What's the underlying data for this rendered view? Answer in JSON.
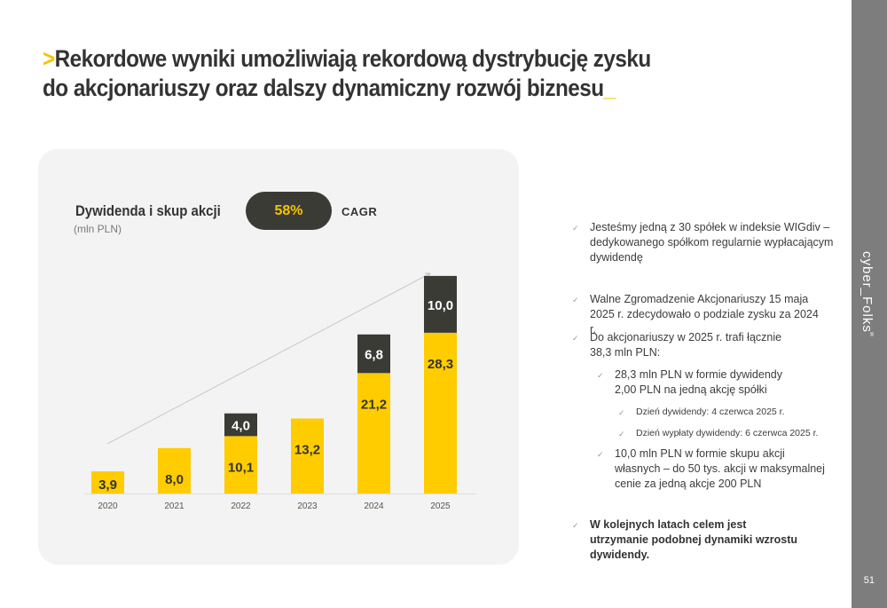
{
  "title": {
    "prefix": ">",
    "line1": "Rekordowe wyniki umożliwiają rekordową dystrybucję zysku",
    "line2": "do akcjonariuszy oraz dalszy dynamiczny rozwój biznesu",
    "suffix": "_"
  },
  "sidebar": {
    "brand": "cyber_Folks",
    "trademark": "®",
    "page_number": "51"
  },
  "chart_data": {
    "type": "bar",
    "stacked": true,
    "title": "Dywidenda i skup akcji",
    "unit": "(mln PLN)",
    "cagr": {
      "value": "58%",
      "label": "CAGR"
    },
    "categories": [
      "2020",
      "2021",
      "2022",
      "2023",
      "2024",
      "2025"
    ],
    "series": [
      {
        "values": [
          3.9,
          8.0,
          10.1,
          13.2,
          21.2,
          28.3
        ],
        "labels": [
          "3,9",
          "8,0",
          "10,1",
          "13,2",
          "21,2",
          "28,3"
        ],
        "color": "#ffcc00"
      },
      {
        "values": [
          0,
          0,
          4.0,
          0,
          6.8,
          10.0
        ],
        "labels": [
          "",
          "",
          "4,0",
          "",
          "6,8",
          "10,0"
        ],
        "color": "#3b3b36"
      }
    ],
    "trend_arrow": true,
    "grid": false,
    "ylim": [
      0,
      40
    ]
  },
  "bullets": [
    {
      "level": 1,
      "text": "Jesteśmy jedną z 30 spółek w indeksie WIGdiv – dedykowanego spółkom regularnie wypłacającym dywidendę"
    },
    {
      "level": 1,
      "text": "Walne Zgromadzenie Akcjonariuszy 15 maja 2025 r. zdecydowało o podziale zysku za 2024 r."
    },
    {
      "level": 1,
      "text": "Do akcjonariuszy w 2025 r. trafi łącznie 38,3 mln PLN:"
    },
    {
      "level": 2,
      "text": "28,3 mln PLN w formie dywidendy 2,00 PLN na jedną akcję spółki"
    },
    {
      "level": 3,
      "text": "Dzień dywidendy: 4 czerwca 2025 r."
    },
    {
      "level": 3,
      "text": "Dzień wypłaty dywidendy: 6 czerwca 2025 r."
    },
    {
      "level": 2,
      "text": "10,0 mln PLN w formie skupu akcji własnych – do 50 tys. akcji w maksymalnej cenie za jedną akcje 200 PLN"
    },
    {
      "level": 1,
      "text": "W kolejnych latach celem jest utrzymanie podobnej dynamiki wzrostu dywidendy.",
      "bold": true
    }
  ],
  "icons": {
    "bullet": "check-icon"
  }
}
